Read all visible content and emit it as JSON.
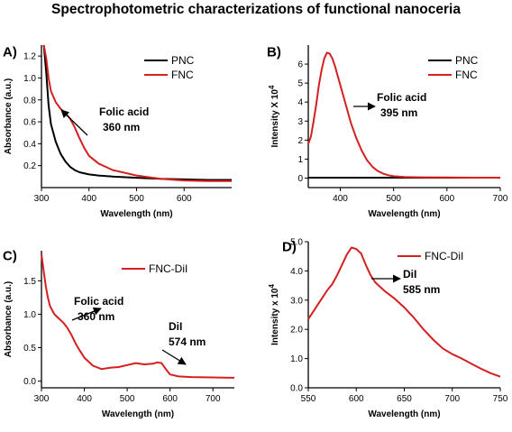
{
  "title": "Spectrophotometric characterizations of functional nanoceria",
  "colors": {
    "red": "#d42020",
    "black": "#000000"
  },
  "chart_data": [
    {
      "panel": "A)",
      "type": "line",
      "xlabel": "Wavelength (nm)",
      "ylabel": "Absorbance (a.u.)",
      "xlim": [
        300,
        700
      ],
      "ylim": [
        0,
        1.3
      ],
      "xticks": [
        300,
        400,
        500,
        600
      ],
      "yticks": [
        0.2,
        0.4,
        0.6,
        0.8,
        1.0,
        1.2
      ],
      "legend_position": "top-right",
      "series": [
        {
          "name": "PNC",
          "color": "#000000",
          "x": [
            305,
            310,
            315,
            320,
            330,
            340,
            350,
            360,
            370,
            380,
            400,
            420,
            450,
            500,
            550,
            600,
            650,
            700
          ],
          "y": [
            1.3,
            1.05,
            0.75,
            0.58,
            0.42,
            0.31,
            0.24,
            0.19,
            0.16,
            0.14,
            0.12,
            0.11,
            0.1,
            0.09,
            0.08,
            0.075,
            0.07,
            0.07
          ]
        },
        {
          "name": "FNC",
          "color": "#d42020",
          "x": [
            305,
            310,
            315,
            320,
            330,
            340,
            350,
            360,
            370,
            380,
            390,
            400,
            420,
            450,
            500,
            550,
            600,
            650,
            700
          ],
          "y": [
            1.3,
            1.18,
            1.0,
            0.88,
            0.78,
            0.72,
            0.68,
            0.63,
            0.55,
            0.45,
            0.36,
            0.29,
            0.22,
            0.16,
            0.11,
            0.08,
            0.065,
            0.06,
            0.06
          ]
        }
      ],
      "annotations": [
        {
          "lines": [
            "Folic acid",
            "360 nm"
          ]
        }
      ]
    },
    {
      "panel": "B)",
      "type": "line",
      "xlabel": "Wavelength (nm)",
      "ylabel": "Intensity X 10",
      "ylabel_sup": "4",
      "xlim": [
        340,
        700
      ],
      "ylim": [
        -0.5,
        7
      ],
      "xticks": [
        400,
        500,
        600,
        700
      ],
      "yticks": [
        0,
        1,
        2,
        3,
        4,
        5,
        6
      ],
      "legend_position": "top-right",
      "series": [
        {
          "name": "PNC",
          "color": "#000000",
          "x": [
            340,
            400,
            500,
            600,
            700
          ],
          "y": [
            0.02,
            0.02,
            0.02,
            0.02,
            0.02
          ]
        },
        {
          "name": "FNC",
          "color": "#d42020",
          "x": [
            340,
            345,
            350,
            355,
            360,
            365,
            370,
            375,
            380,
            385,
            390,
            395,
            400,
            410,
            420,
            430,
            440,
            450,
            460,
            470,
            480,
            490,
            500,
            520,
            550,
            600,
            650,
            700
          ],
          "y": [
            1.8,
            2.2,
            3.0,
            3.9,
            4.9,
            5.7,
            6.3,
            6.6,
            6.55,
            6.3,
            5.9,
            5.4,
            4.9,
            3.9,
            2.9,
            2.1,
            1.45,
            0.95,
            0.6,
            0.38,
            0.24,
            0.15,
            0.1,
            0.06,
            0.04,
            0.03,
            0.02,
            0.02
          ]
        }
      ],
      "annotations": [
        {
          "lines": [
            "Folic acid",
            "395 nm"
          ]
        }
      ]
    },
    {
      "panel": "C)",
      "type": "line",
      "xlabel": "Wavelength (nm)",
      "ylabel": "Absorbance (a.u.)",
      "xlim": [
        300,
        750
      ],
      "ylim": [
        -0.1,
        1.95
      ],
      "xticks": [
        300,
        400,
        500,
        600,
        700
      ],
      "yticks": [
        0.0,
        0.5,
        1.0,
        1.5
      ],
      "legend_position": "top-right",
      "series": [
        {
          "name": "FNC-DiI",
          "color": "#d42020",
          "x": [
            300,
            305,
            310,
            315,
            320,
            330,
            340,
            350,
            360,
            370,
            380,
            390,
            400,
            420,
            440,
            460,
            480,
            500,
            520,
            540,
            560,
            570,
            580,
            590,
            600,
            620,
            650,
            700,
            750
          ],
          "y": [
            1.9,
            1.65,
            1.42,
            1.25,
            1.12,
            1.0,
            0.94,
            0.88,
            0.8,
            0.69,
            0.56,
            0.45,
            0.35,
            0.23,
            0.18,
            0.2,
            0.21,
            0.24,
            0.27,
            0.25,
            0.26,
            0.28,
            0.27,
            0.18,
            0.1,
            0.07,
            0.06,
            0.055,
            0.05
          ]
        }
      ],
      "annotations": [
        {
          "lines": [
            "Folic acid",
            "360 nm"
          ]
        },
        {
          "lines": [
            "DiI",
            "574 nm"
          ]
        }
      ]
    },
    {
      "panel": "D)",
      "type": "line",
      "xlabel": "Wavelength (nm)",
      "ylabel": "Intensity x 10",
      "ylabel_sup": "4",
      "xlim": [
        550,
        750
      ],
      "ylim": [
        0,
        5.0
      ],
      "xticks": [
        550,
        600,
        650,
        700,
        750
      ],
      "yticks": [
        0.0,
        1.0,
        2.0,
        3.0,
        4.0,
        5.0
      ],
      "legend_position": "top-right",
      "series": [
        {
          "name": "FNC-DiI",
          "color": "#d42020",
          "x": [
            550,
            555,
            560,
            565,
            570,
            575,
            580,
            585,
            590,
            595,
            600,
            605,
            610,
            615,
            620,
            625,
            630,
            640,
            650,
            660,
            670,
            680,
            690,
            700,
            710,
            720,
            730,
            740,
            750
          ],
          "y": [
            2.35,
            2.6,
            2.85,
            3.1,
            3.35,
            3.55,
            3.85,
            4.2,
            4.55,
            4.8,
            4.75,
            4.6,
            4.2,
            3.85,
            3.6,
            3.45,
            3.3,
            3.05,
            2.75,
            2.4,
            2.0,
            1.65,
            1.35,
            1.15,
            1.0,
            0.82,
            0.65,
            0.5,
            0.38
          ]
        }
      ],
      "annotations": [
        {
          "lines": [
            "DiI",
            "585 nm"
          ]
        }
      ]
    }
  ]
}
